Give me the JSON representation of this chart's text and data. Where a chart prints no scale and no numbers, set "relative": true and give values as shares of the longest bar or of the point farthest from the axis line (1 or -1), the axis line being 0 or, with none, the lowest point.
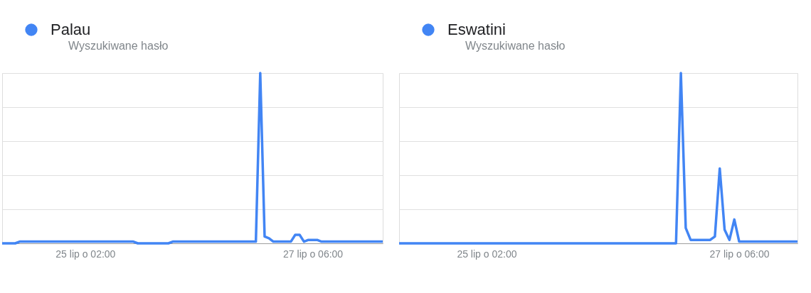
{
  "chart_data": [
    {
      "type": "line",
      "relative": true,
      "subtitle": "Wyszukiwane hasło",
      "grid": "y",
      "legend": "top left",
      "categories": [
        null,
        null,
        null,
        null,
        null,
        null,
        null,
        null,
        null,
        null,
        null,
        null,
        null,
        null,
        null,
        null,
        null,
        null,
        null,
        "25 lip o 02:00",
        null,
        null,
        null,
        null,
        null,
        null,
        null,
        null,
        null,
        null,
        null,
        null,
        null,
        null,
        null,
        null,
        null,
        null,
        null,
        null,
        null,
        null,
        null,
        null,
        null,
        null,
        null,
        null,
        null,
        null,
        null,
        null,
        null,
        null,
        null,
        null,
        null,
        null,
        null,
        null,
        null,
        null,
        null,
        null,
        null,
        null,
        null,
        null,
        null,
        null,
        null,
        "27 lip o 06:00",
        null,
        null,
        null,
        null,
        null,
        null,
        null,
        null,
        null,
        null,
        null,
        null,
        null,
        null,
        null,
        null
      ],
      "series": [
        {
          "name": "Palau",
          "color": "#4285f4",
          "values": [
            0,
            0,
            0,
            0,
            0.01,
            0.01,
            0.01,
            0.01,
            0.01,
            0.01,
            0.01,
            0.01,
            0.01,
            0.01,
            0.01,
            0.01,
            0.01,
            0.01,
            0.01,
            0.01,
            0.01,
            0.01,
            0.01,
            0.01,
            0.01,
            0.01,
            0.01,
            0.01,
            0.01,
            0.01,
            0.01,
            0,
            0,
            0,
            0,
            0,
            0,
            0,
            0,
            0.01,
            0.01,
            0.01,
            0.01,
            0.01,
            0.01,
            0.01,
            0.01,
            0.01,
            0.01,
            0.01,
            0.01,
            0.01,
            0.01,
            0.01,
            0.01,
            0.01,
            0.01,
            0.01,
            0.01,
            1,
            0.04,
            0.03,
            0.01,
            0.01,
            0.01,
            0.01,
            0.01,
            0.05,
            0.05,
            0.01,
            0.02,
            0.02,
            0.02,
            0.01,
            0.01,
            0.01,
            0.01,
            0.01,
            0.01,
            0.01,
            0.01,
            0.01,
            0.01,
            0.01,
            0.01,
            0.01,
            0.01,
            0.01
          ]
        }
      ]
    },
    {
      "type": "line",
      "relative": true,
      "subtitle": "Wyszukiwane hasło",
      "grid": "y",
      "legend": "top left",
      "categories": [
        null,
        null,
        null,
        null,
        null,
        null,
        null,
        null,
        null,
        null,
        null,
        null,
        null,
        null,
        null,
        null,
        null,
        null,
        "25 lip o 02:00",
        null,
        null,
        null,
        null,
        null,
        null,
        null,
        null,
        null,
        null,
        null,
        null,
        null,
        null,
        null,
        null,
        null,
        null,
        null,
        null,
        null,
        null,
        null,
        null,
        null,
        null,
        null,
        null,
        null,
        null,
        null,
        null,
        null,
        null,
        null,
        null,
        null,
        null,
        null,
        null,
        null,
        null,
        null,
        null,
        null,
        null,
        null,
        null,
        null,
        null,
        null,
        "27 lip o 06:00",
        null,
        null,
        null,
        null,
        null,
        null,
        null,
        null,
        null,
        null,
        null,
        null
      ],
      "series": [
        {
          "name": "Eswatini",
          "color": "#4285f4",
          "values": [
            0,
            0,
            0,
            0,
            0,
            0,
            0,
            0,
            0,
            0,
            0,
            0,
            0,
            0,
            0,
            0,
            0,
            0,
            0,
            0,
            0,
            0,
            0,
            0,
            0,
            0,
            0,
            0,
            0,
            0,
            0,
            0,
            0,
            0,
            0,
            0,
            0,
            0,
            0,
            0,
            0,
            0,
            0,
            0,
            0,
            0,
            0,
            0,
            0,
            0,
            0,
            0,
            0,
            0,
            0,
            0,
            0,
            0,
            1,
            0.09,
            0.02,
            0.02,
            0.02,
            0.02,
            0.02,
            0.04,
            0.44,
            0.08,
            0.02,
            0.14,
            0.01,
            0.01,
            0.01,
            0.01,
            0.01,
            0.01,
            0.01,
            0.01,
            0.01,
            0.01,
            0.01,
            0.01,
            0.01
          ]
        }
      ]
    }
  ]
}
